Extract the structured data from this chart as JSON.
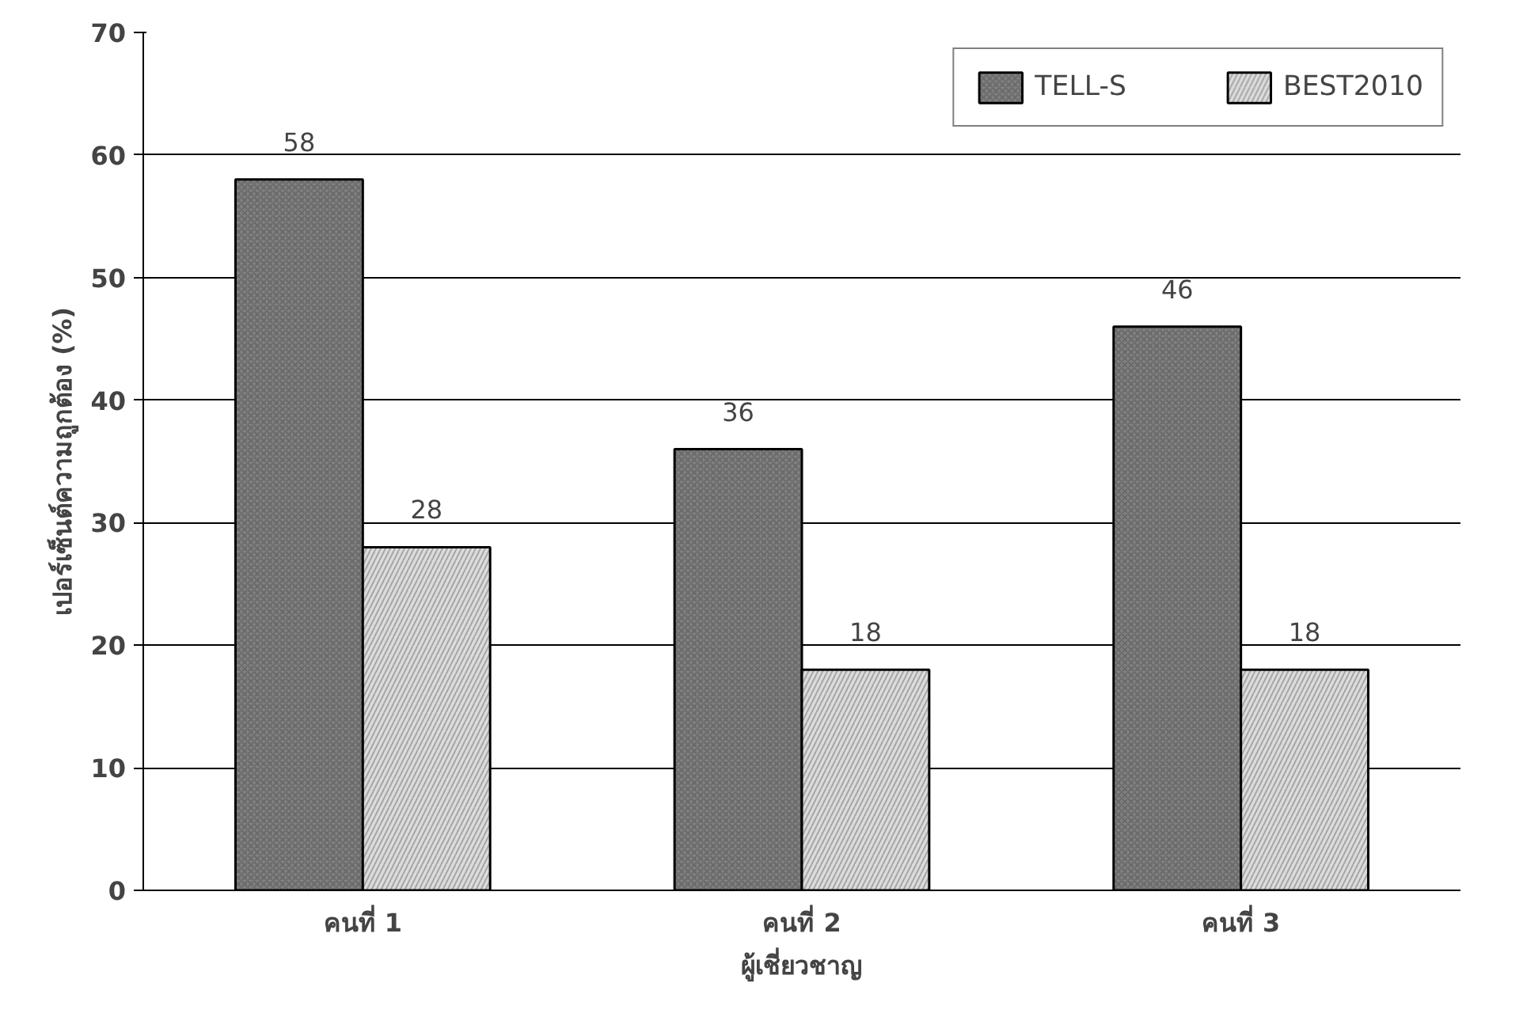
{
  "chart_data": {
    "type": "bar",
    "xlabel": "ผู้เชี่ยวชาญ",
    "ylabel": "เปอร์เซ็นต์ความถูกต้อง (%)",
    "categories": [
      "คนที่ 1",
      "คนที่ 2",
      "คนที่ 3"
    ],
    "series": [
      {
        "name": "TELL-S",
        "color": "#808080",
        "values": [
          58,
          36,
          46
        ]
      },
      {
        "name": "BEST2010",
        "color": "#dcdcdc",
        "values": [
          28,
          18,
          18
        ]
      }
    ],
    "ylim": [
      0,
      70
    ],
    "yticks": [
      0,
      10,
      20,
      30,
      40,
      50,
      60,
      70
    ],
    "grid": "y",
    "legend": "top right",
    "data_labels": true
  }
}
